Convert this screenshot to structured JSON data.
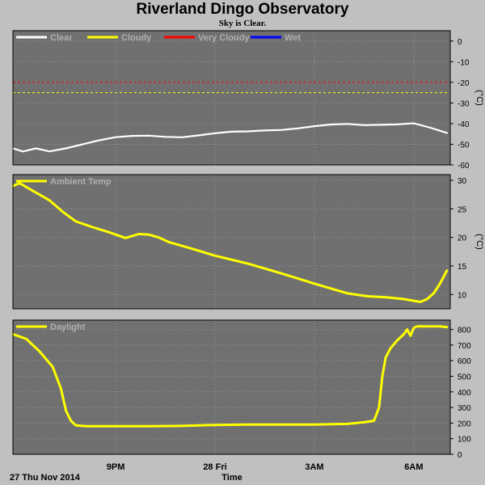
{
  "page": {
    "title": "Riverland Dingo Observatory",
    "subtitle": "Sky is Clear."
  },
  "chart_data": [
    {
      "type": "line",
      "panel": "sky",
      "ylabel": "(°C)",
      "ylim": [
        -60,
        5
      ],
      "yticks": [
        0,
        -10,
        -20,
        -30,
        -40,
        -50,
        -60
      ],
      "grid": true,
      "legend_position": "top-left",
      "legend": [
        {
          "name": "Clear",
          "color": "#ffffff"
        },
        {
          "name": "Cloudy",
          "color": "#ffff00"
        },
        {
          "name": "Very Cloudy",
          "color": "#ff0000"
        },
        {
          "name": "Wet",
          "color": "#0000ff"
        }
      ],
      "thresholds": [
        {
          "value": -20,
          "color": "#ff0000"
        },
        {
          "value": -25,
          "color": "#ffff00"
        }
      ],
      "series": [
        {
          "name": "Clear",
          "color": "#ffffff",
          "x": [
            17.9,
            18.2,
            18.6,
            19.0,
            19.5,
            20.0,
            20.5,
            21.0,
            21.5,
            22.0,
            22.5,
            23.0,
            23.5,
            24.0,
            24.5,
            25.0,
            25.5,
            26.0,
            26.5,
            27.0,
            27.5,
            28.0,
            28.5,
            29.0,
            29.5,
            30.0,
            30.5,
            31.0
          ],
          "y": [
            -52,
            -53.5,
            -52,
            -53.5,
            -51.5,
            -49.5,
            -48,
            -47,
            -46.5,
            -46,
            -46,
            -46,
            -45.5,
            -45,
            -44.5,
            -44,
            -43,
            -42.5,
            -42,
            -41.5,
            -41,
            -40.5,
            -40.5,
            -40,
            -40,
            -40,
            -42,
            -44.5
          ]
        }
      ],
      "xlim": [
        17.9,
        31.1
      ]
    },
    {
      "type": "line",
      "panel": "ambient",
      "ylabel": "(°C)",
      "ylim": [
        7.5,
        31
      ],
      "yticks": [
        30,
        25,
        20,
        15,
        10
      ],
      "grid": true,
      "legend_position": "top-left",
      "series": [
        {
          "name": "Ambient Temp",
          "color": "#ffff00",
          "x": [
            17.9,
            18.1,
            18.4,
            18.7,
            19.0,
            19.4,
            19.8,
            20.3,
            20.8,
            21.3,
            21.7,
            22.0,
            22.3,
            22.6,
            23.2,
            24.0,
            25.0,
            26.0,
            27.0,
            28.0,
            28.6,
            29.2,
            29.7,
            30.0,
            30.2,
            30.4,
            30.6,
            30.8,
            31.0
          ],
          "y": [
            29,
            29.5,
            28.5,
            27.5,
            26.5,
            24.5,
            22.8,
            21.8,
            20.9,
            19.9,
            20.6,
            20.5,
            20.0,
            19.2,
            18.2,
            16.8,
            15.4,
            13.7,
            11.9,
            10.2,
            9.7,
            9.5,
            9.2,
            8.9,
            8.7,
            9.2,
            10.2,
            12,
            14.2
          ]
        }
      ],
      "xlim": [
        17.9,
        31.1
      ]
    },
    {
      "type": "line",
      "panel": "daylight",
      "ylim": [
        0,
        860
      ],
      "yticks": [
        800,
        700,
        600,
        500,
        400,
        300,
        200,
        100,
        0
      ],
      "grid": true,
      "legend_position": "top-left",
      "series": [
        {
          "name": "Daylight",
          "color": "#ffff00",
          "x": [
            17.9,
            18.3,
            18.7,
            19.1,
            19.35,
            19.5,
            19.65,
            19.8,
            20.1,
            21.0,
            22.0,
            23.0,
            24.0,
            25.0,
            26.0,
            27.0,
            28.0,
            28.5,
            28.8,
            28.95,
            29.05,
            29.15,
            29.3,
            29.5,
            29.7,
            29.8,
            29.9,
            30.0,
            30.1,
            30.3,
            30.5,
            30.8,
            31.0
          ],
          "y": [
            770,
            740,
            660,
            560,
            420,
            280,
            215,
            185,
            180,
            180,
            180,
            182,
            188,
            190,
            190,
            190,
            195,
            205,
            215,
            300,
            500,
            620,
            680,
            730,
            770,
            800,
            760,
            810,
            820,
            820,
            820,
            820,
            815
          ]
        }
      ],
      "xlim": [
        17.9,
        31.1
      ]
    }
  ],
  "xaxis": {
    "label": "Time",
    "date_label": "27 Thu Nov 2014",
    "ticks": [
      {
        "value": 21,
        "label": "9PM"
      },
      {
        "value": 24,
        "label": "28 Fri"
      },
      {
        "value": 27,
        "label": "3AM"
      },
      {
        "value": 30,
        "label": "6AM"
      }
    ]
  },
  "colors": {
    "background": "#c0c0c0",
    "plot_background": "#707070",
    "grid": "#9a9a9a",
    "legend_text": "#b0b0b0"
  }
}
